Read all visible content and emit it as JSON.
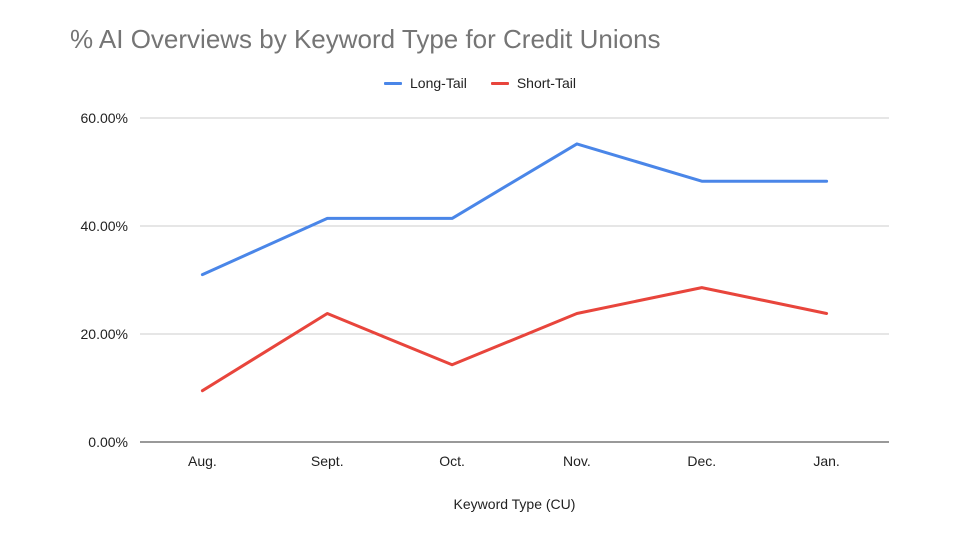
{
  "chart_data": {
    "type": "line",
    "title": "% AI Overviews by Keyword Type for Credit Unions",
    "xlabel": "Keyword Type (CU)",
    "ylabel": "",
    "categories": [
      "Aug.",
      "Sept.",
      "Oct.",
      "Nov.",
      "Dec.",
      "Jan."
    ],
    "y_ticks": [
      "0.00%",
      "20.00%",
      "40.00%",
      "60.00%"
    ],
    "ylim": [
      0,
      60
    ],
    "grid": true,
    "legend_position": "top-center",
    "series": [
      {
        "name": "Long-Tail",
        "color": "#4a86e8",
        "values": [
          31.0,
          41.4,
          41.4,
          55.2,
          48.3,
          48.3
        ]
      },
      {
        "name": "Short-Tail",
        "color": "#e8453c",
        "values": [
          9.5,
          23.8,
          14.3,
          23.8,
          28.6,
          23.8
        ]
      }
    ]
  }
}
